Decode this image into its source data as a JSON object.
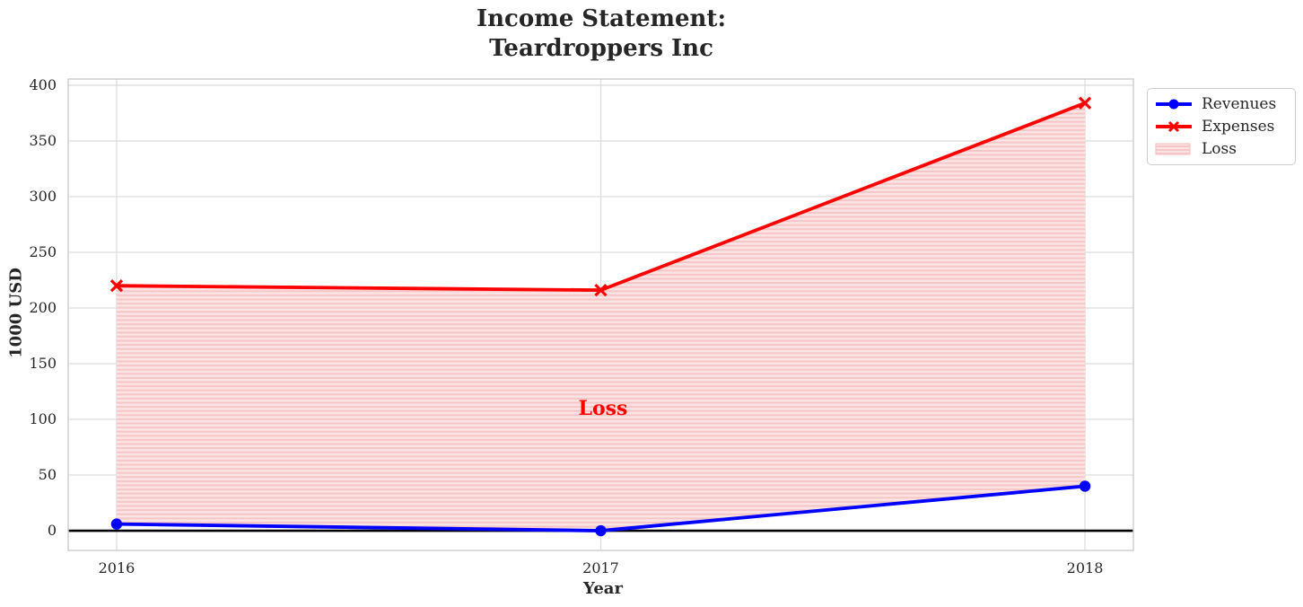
{
  "figure": {
    "title_line1": "Income Statement:",
    "title_line2": "Teardroppers Inc",
    "text_color": "#262626",
    "background": "#ffffff"
  },
  "chart_data": {
    "type": "line",
    "title": "Income Statement: Teardroppers Inc",
    "xlabel": "Year",
    "ylabel": "1000 USD",
    "x": [
      2016,
      2017,
      2018
    ],
    "series": [
      {
        "name": "Revenues",
        "color": "#0000ff",
        "marker": "circle",
        "values": [
          6,
          0,
          40
        ]
      },
      {
        "name": "Expenses",
        "color": "#ff0000",
        "marker": "x",
        "values": [
          220,
          216,
          384
        ]
      }
    ],
    "fill_between": {
      "label": "Loss",
      "upper_series": "Expenses",
      "lower_series": "Revenues",
      "fill_color": "#fce4e4",
      "hatch_color": "#f6c6c6",
      "hatch": "horizontal"
    },
    "annotation": {
      "text": "Loss",
      "x": 2017,
      "y": 110,
      "color": "#ff0000"
    },
    "x_ticks": [
      "2016",
      "2017",
      "2018"
    ],
    "x_tick_values": [
      2016,
      2017,
      2018
    ],
    "y_ticks": [
      "0",
      "50",
      "100",
      "150",
      "200",
      "250",
      "300",
      "350",
      "400"
    ],
    "y_tick_values": [
      0,
      50,
      100,
      150,
      200,
      250,
      300,
      350,
      400
    ],
    "xlim": [
      2015.9,
      2018.1
    ],
    "ylim": [
      -17.7,
      405.6
    ],
    "grid": true,
    "grid_color": "#dddddd",
    "spine_color": "#cccccc",
    "zero_line": true,
    "zero_line_color": "#000000",
    "legend_position": "upper-right-outside"
  },
  "legend": {
    "entries": [
      {
        "label": "Revenues"
      },
      {
        "label": "Expenses"
      },
      {
        "label": "Loss"
      }
    ]
  }
}
